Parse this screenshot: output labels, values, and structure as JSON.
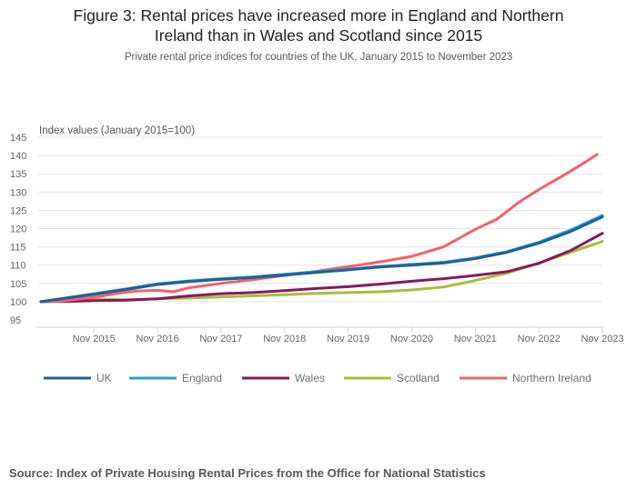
{
  "chart_data": {
    "type": "line",
    "title": "Figure 3: Rental prices have increased more in England and Northern Ireland than in Wales and Scotland since 2015",
    "title_lines": [
      "Figure 3: Rental prices have increased more in England and Northern",
      "Ireland than in Wales and Scotland since 2015"
    ],
    "subtitle": "Private rental price indices for countries of the UK, January 2015 to November 2023",
    "ylabel": "Index values (January 2015=100)",
    "xlabel": "",
    "ylim": [
      95,
      145
    ],
    "yticks": [
      95,
      100,
      105,
      110,
      115,
      120,
      125,
      130,
      135,
      140,
      145
    ],
    "x_range_months": [
      0,
      106
    ],
    "x_start": "Jan 2015",
    "xticks": [
      {
        "label": "Nov 2015",
        "month_index": 10
      },
      {
        "label": "Nov 2016",
        "month_index": 22
      },
      {
        "label": "Nov 2017",
        "month_index": 34
      },
      {
        "label": "Nov 2018",
        "month_index": 46
      },
      {
        "label": "Nov 2019",
        "month_index": 58
      },
      {
        "label": "Nov 2020",
        "month_index": 70
      },
      {
        "label": "Nov 2021",
        "month_index": 82
      },
      {
        "label": "Nov 2022",
        "month_index": 94
      },
      {
        "label": "Nov 2023",
        "month_index": 106
      }
    ],
    "grid": true,
    "legend_position": "bottom",
    "series": [
      {
        "name": "UK",
        "color": "#206095",
        "points": [
          [
            0,
            100
          ],
          [
            4,
            100.8
          ],
          [
            10,
            102.0
          ],
          [
            16,
            103.3
          ],
          [
            22,
            104.7
          ],
          [
            28,
            105.5
          ],
          [
            34,
            106.1
          ],
          [
            40,
            106.6
          ],
          [
            46,
            107.3
          ],
          [
            52,
            108.0
          ],
          [
            58,
            108.7
          ],
          [
            64,
            109.5
          ],
          [
            70,
            110.0
          ],
          [
            76,
            110.6
          ],
          [
            82,
            111.8
          ],
          [
            88,
            113.5
          ],
          [
            94,
            116.0
          ],
          [
            100,
            119.2
          ],
          [
            106,
            123.2
          ]
        ]
      },
      {
        "name": "England",
        "color": "#27a0cc",
        "points": [
          [
            0,
            100
          ],
          [
            4,
            100.9
          ],
          [
            10,
            102.2
          ],
          [
            16,
            103.5
          ],
          [
            22,
            104.9
          ],
          [
            28,
            105.7
          ],
          [
            34,
            106.3
          ],
          [
            40,
            106.8
          ],
          [
            46,
            107.5
          ],
          [
            52,
            108.2
          ],
          [
            58,
            108.9
          ],
          [
            64,
            109.6
          ],
          [
            70,
            110.2
          ],
          [
            76,
            110.8
          ],
          [
            82,
            112.0
          ],
          [
            88,
            113.7
          ],
          [
            94,
            116.3
          ],
          [
            100,
            119.6
          ],
          [
            106,
            123.6
          ]
        ]
      },
      {
        "name": "Wales",
        "color": "#871a5b",
        "points": [
          [
            0,
            100
          ],
          [
            6,
            100.1
          ],
          [
            10,
            100.3
          ],
          [
            16,
            100.4
          ],
          [
            22,
            100.8
          ],
          [
            28,
            101.6
          ],
          [
            34,
            102.2
          ],
          [
            40,
            102.5
          ],
          [
            46,
            103.0
          ],
          [
            52,
            103.6
          ],
          [
            58,
            104.1
          ],
          [
            64,
            104.8
          ],
          [
            70,
            105.6
          ],
          [
            76,
            106.3
          ],
          [
            82,
            107.2
          ],
          [
            88,
            108.2
          ],
          [
            94,
            110.5
          ],
          [
            100,
            114.0
          ],
          [
            106,
            118.7
          ]
        ]
      },
      {
        "name": "Scotland",
        "color": "#a8bd3a",
        "points": [
          [
            0,
            100
          ],
          [
            6,
            100.5
          ],
          [
            10,
            100.7
          ],
          [
            16,
            100.5
          ],
          [
            22,
            100.8
          ],
          [
            28,
            101.0
          ],
          [
            34,
            101.3
          ],
          [
            40,
            101.6
          ],
          [
            46,
            101.9
          ],
          [
            52,
            102.3
          ],
          [
            58,
            102.5
          ],
          [
            64,
            102.7
          ],
          [
            70,
            103.2
          ],
          [
            76,
            104.0
          ],
          [
            82,
            105.8
          ],
          [
            88,
            107.8
          ],
          [
            94,
            110.6
          ],
          [
            100,
            113.5
          ],
          [
            106,
            116.5
          ]
        ]
      },
      {
        "name": "Northern Ireland",
        "color": "#f66068",
        "points": [
          [
            0,
            100
          ],
          [
            4,
            100.2
          ],
          [
            10,
            101.2
          ],
          [
            14,
            102.2
          ],
          [
            18,
            102.9
          ],
          [
            22,
            103.1
          ],
          [
            25,
            102.7
          ],
          [
            28,
            103.8
          ],
          [
            34,
            105.0
          ],
          [
            40,
            106.0
          ],
          [
            46,
            107.2
          ],
          [
            52,
            108.3
          ],
          [
            58,
            109.6
          ],
          [
            64,
            110.9
          ],
          [
            70,
            112.4
          ],
          [
            76,
            115.0
          ],
          [
            82,
            119.8
          ],
          [
            86,
            122.5
          ],
          [
            90,
            127.0
          ],
          [
            94,
            130.7
          ],
          [
            98,
            134.0
          ],
          [
            102,
            137.5
          ],
          [
            105,
            140.3
          ]
        ]
      }
    ]
  },
  "footer": {
    "source": "Source: Index of Private Housing Rental Prices from the Office for National Statistics"
  }
}
